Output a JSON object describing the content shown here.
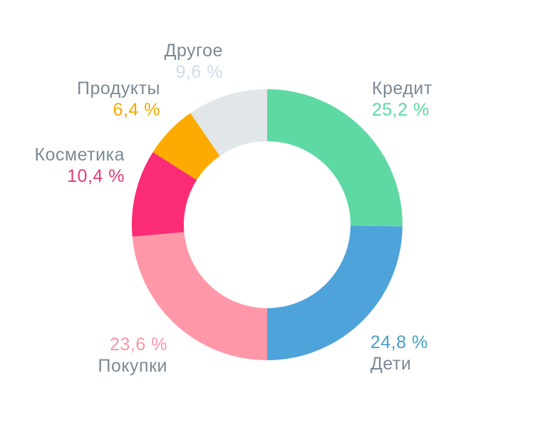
{
  "chart_data": {
    "type": "pie",
    "style": "donut",
    "unit": "%",
    "slices": [
      {
        "label": "Кредит",
        "value": 25.2,
        "display": "25,2 %",
        "color": "#5fd9a3"
      },
      {
        "label": "Дети",
        "value": 24.8,
        "display": "24,8 %",
        "color": "#4fa3db"
      },
      {
        "label": "Покупки",
        "value": 23.6,
        "display": "23,6 %",
        "color": "#fe98a8"
      },
      {
        "label": "Косметика",
        "value": 10.4,
        "display": "10,4 %",
        "color": "#fb2b76"
      },
      {
        "label": "Продукты",
        "value": 6.4,
        "display": "6,4 %",
        "color": "#fdab00"
      },
      {
        "label": "Другое",
        "value": 9.6,
        "display": "9,6 %",
        "color": "#e1e6e9"
      }
    ],
    "label_value_colors": {
      "Кредит": "#5fd9a3",
      "Дети": "#4ba0c5",
      "Покупки": "#f497a8",
      "Косметика": "#e13d74",
      "Продукты": "#f5a900",
      "Другое": "#cbdde7"
    }
  }
}
